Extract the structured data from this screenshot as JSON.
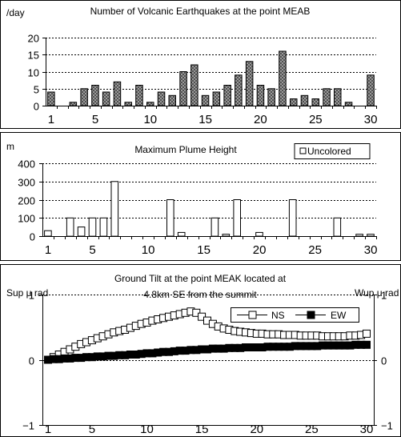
{
  "chart_data": [
    {
      "type": "bar",
      "title": "Number of Volcanic Earthquakes at the point MEAB",
      "ylabel": "/day",
      "ylim": [
        0,
        20
      ],
      "yticks": [
        0,
        5,
        10,
        15,
        20
      ],
      "x": [
        1,
        2,
        3,
        4,
        5,
        6,
        7,
        8,
        9,
        10,
        11,
        12,
        13,
        14,
        15,
        16,
        17,
        18,
        19,
        20,
        21,
        22,
        23,
        24,
        25,
        26,
        27,
        28,
        29,
        30
      ],
      "xticks": [
        1,
        5,
        10,
        15,
        20,
        25,
        30
      ],
      "values": [
        4,
        0,
        1,
        5,
        6,
        4,
        7,
        1,
        6,
        1,
        4,
        3,
        10,
        12,
        3,
        4,
        6,
        9,
        13,
        6,
        5,
        16,
        2,
        3,
        2,
        5,
        5,
        1,
        0,
        9
      ],
      "fill": "checkered gray",
      "grid": true
    },
    {
      "type": "bar",
      "title": "Maximum Plume Height",
      "ylabel": "m",
      "ylim": [
        0,
        400
      ],
      "yticks": [
        0,
        100,
        200,
        300,
        400
      ],
      "x": [
        1,
        2,
        3,
        4,
        5,
        6,
        7,
        8,
        9,
        10,
        11,
        12,
        13,
        14,
        15,
        16,
        17,
        18,
        19,
        20,
        21,
        22,
        23,
        24,
        25,
        26,
        27,
        28,
        29,
        30
      ],
      "xticks": [
        1,
        5,
        10,
        15,
        20,
        25,
        30
      ],
      "values": [
        30,
        0,
        100,
        50,
        100,
        100,
        300,
        0,
        0,
        0,
        0,
        200,
        20,
        0,
        0,
        100,
        10,
        200,
        0,
        20,
        0,
        0,
        200,
        0,
        0,
        0,
        100,
        0,
        10,
        10
      ],
      "legend": {
        "label": "Uncolored",
        "position": "top-right"
      },
      "fill": "white",
      "grid": true
    },
    {
      "type": "line",
      "title": "Ground Tilt at the point MEAK located at",
      "subtitle": "4.8km SE from the summit",
      "ylabel_left": "Sup μ rad",
      "ylabel_right": "Wup μ rad",
      "ylim": [
        -1,
        1
      ],
      "yticks": [
        -1,
        0,
        1
      ],
      "yticks_right": [
        -1,
        0,
        1
      ],
      "xticks": [
        1,
        5,
        10,
        15,
        20,
        25,
        30
      ],
      "x": [
        1,
        1.5,
        2,
        2.5,
        3,
        3.5,
        4,
        4.5,
        5,
        5.5,
        6,
        6.5,
        7,
        7.5,
        8,
        8.5,
        9,
        9.5,
        10,
        10.5,
        11,
        11.5,
        12,
        12.5,
        13,
        13.5,
        14,
        14.5,
        15,
        15.5,
        16,
        16.5,
        17,
        17.5,
        18,
        18.5,
        19,
        19.5,
        20,
        20.5,
        21,
        21.5,
        22,
        22.5,
        23,
        23.5,
        24,
        24.5,
        25,
        25.5,
        26,
        26.5,
        27,
        27.5,
        28,
        28.5,
        29,
        29.5,
        30
      ],
      "series": [
        {
          "name": "NS",
          "marker": "open-square",
          "values": [
            0.0,
            0.04,
            0.08,
            0.12,
            0.16,
            0.2,
            0.24,
            0.27,
            0.3,
            0.33,
            0.36,
            0.39,
            0.42,
            0.44,
            0.46,
            0.49,
            0.52,
            0.55,
            0.57,
            0.6,
            0.62,
            0.64,
            0.66,
            0.68,
            0.7,
            0.72,
            0.74,
            0.72,
            0.66,
            0.6,
            0.55,
            0.51,
            0.48,
            0.46,
            0.44,
            0.43,
            0.42,
            0.41,
            0.4,
            0.4,
            0.39,
            0.39,
            0.39,
            0.38,
            0.38,
            0.38,
            0.37,
            0.37,
            0.37,
            0.37,
            0.36,
            0.36,
            0.36,
            0.36,
            0.36,
            0.37,
            0.37,
            0.38,
            0.4
          ]
        },
        {
          "name": "EW",
          "marker": "filled-square",
          "values": [
            0.0,
            0.01,
            0.01,
            0.02,
            0.02,
            0.03,
            0.03,
            0.04,
            0.04,
            0.05,
            0.05,
            0.06,
            0.06,
            0.07,
            0.07,
            0.08,
            0.08,
            0.09,
            0.1,
            0.1,
            0.11,
            0.12,
            0.12,
            0.13,
            0.14,
            0.14,
            0.15,
            0.15,
            0.16,
            0.16,
            0.17,
            0.17,
            0.17,
            0.18,
            0.18,
            0.18,
            0.19,
            0.19,
            0.19,
            0.19,
            0.2,
            0.2,
            0.2,
            0.2,
            0.2,
            0.21,
            0.21,
            0.21,
            0.21,
            0.21,
            0.22,
            0.22,
            0.22,
            0.22,
            0.22,
            0.22,
            0.23,
            0.23,
            0.23
          ]
        }
      ],
      "legend": {
        "position": "top-right"
      },
      "grid": true
    }
  ]
}
